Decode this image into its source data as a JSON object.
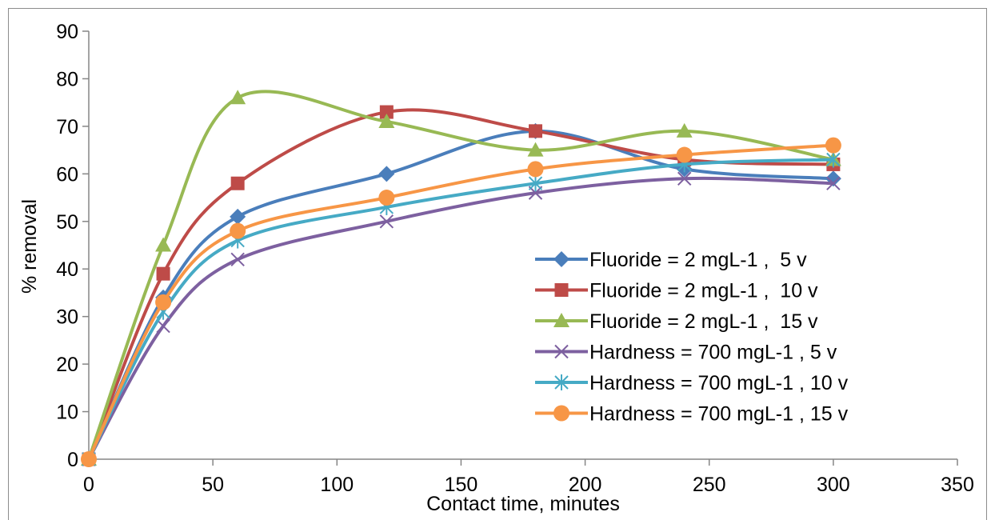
{
  "chart_data": {
    "type": "line",
    "title": "",
    "xlabel": "Contact time, minutes",
    "ylabel": "% removal",
    "xlim": [
      0,
      350
    ],
    "ylim": [
      0,
      90
    ],
    "xticks": [
      0,
      50,
      100,
      150,
      200,
      250,
      300,
      350
    ],
    "yticks": [
      0,
      10,
      20,
      30,
      40,
      50,
      60,
      70,
      80,
      90
    ],
    "grid": false,
    "legend_position": "right",
    "x": [
      0,
      30,
      60,
      120,
      180,
      240,
      300
    ],
    "series": [
      {
        "name": "Fluoride = 2 mgL-1 ,  5 v",
        "values": [
          0,
          34,
          51,
          60,
          69,
          61,
          59
        ],
        "color": "#4a7ebb",
        "marker": "diamond"
      },
      {
        "name": "Fluoride = 2 mgL-1 ,  10 v",
        "values": [
          0,
          39,
          58,
          73,
          69,
          63,
          62
        ],
        "color": "#be4b48",
        "marker": "square"
      },
      {
        "name": "Fluoride = 2 mgL-1 ,  15 v",
        "values": [
          0,
          45,
          76,
          71,
          65,
          69,
          63
        ],
        "color": "#98b954",
        "marker": "triangle"
      },
      {
        "name": "Hardness = 700 mgL-1 , 5 v",
        "values": [
          0,
          28,
          42,
          50,
          56,
          59,
          58
        ],
        "color": "#7d60a0",
        "marker": "x"
      },
      {
        "name": "Hardness = 700 mgL-1 , 10 v",
        "values": [
          0,
          31,
          46,
          53,
          58,
          62,
          63
        ],
        "color": "#46aac5",
        "marker": "star"
      },
      {
        "name": "Hardness = 700 mgL-1 , 15 v",
        "values": [
          0,
          33,
          48,
          55,
          61,
          64,
          66
        ],
        "color": "#f79646",
        "marker": "circle"
      }
    ]
  }
}
